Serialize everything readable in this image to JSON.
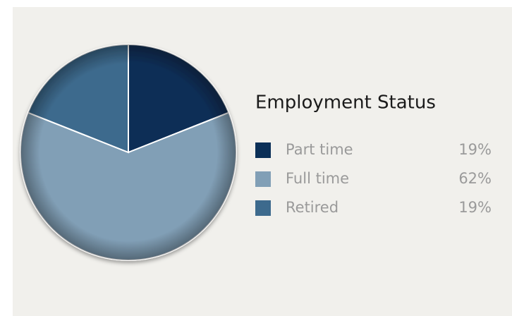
{
  "chart_data": {
    "type": "pie",
    "title": "Employment Status",
    "categories": [
      "Part time",
      "Full time",
      "Retired"
    ],
    "values": [
      19,
      62,
      19
    ],
    "value_labels": [
      "19%",
      "62%",
      "19%"
    ],
    "colors": [
      "#0b2f57",
      "#819fb6",
      "#3d6a8d"
    ]
  }
}
